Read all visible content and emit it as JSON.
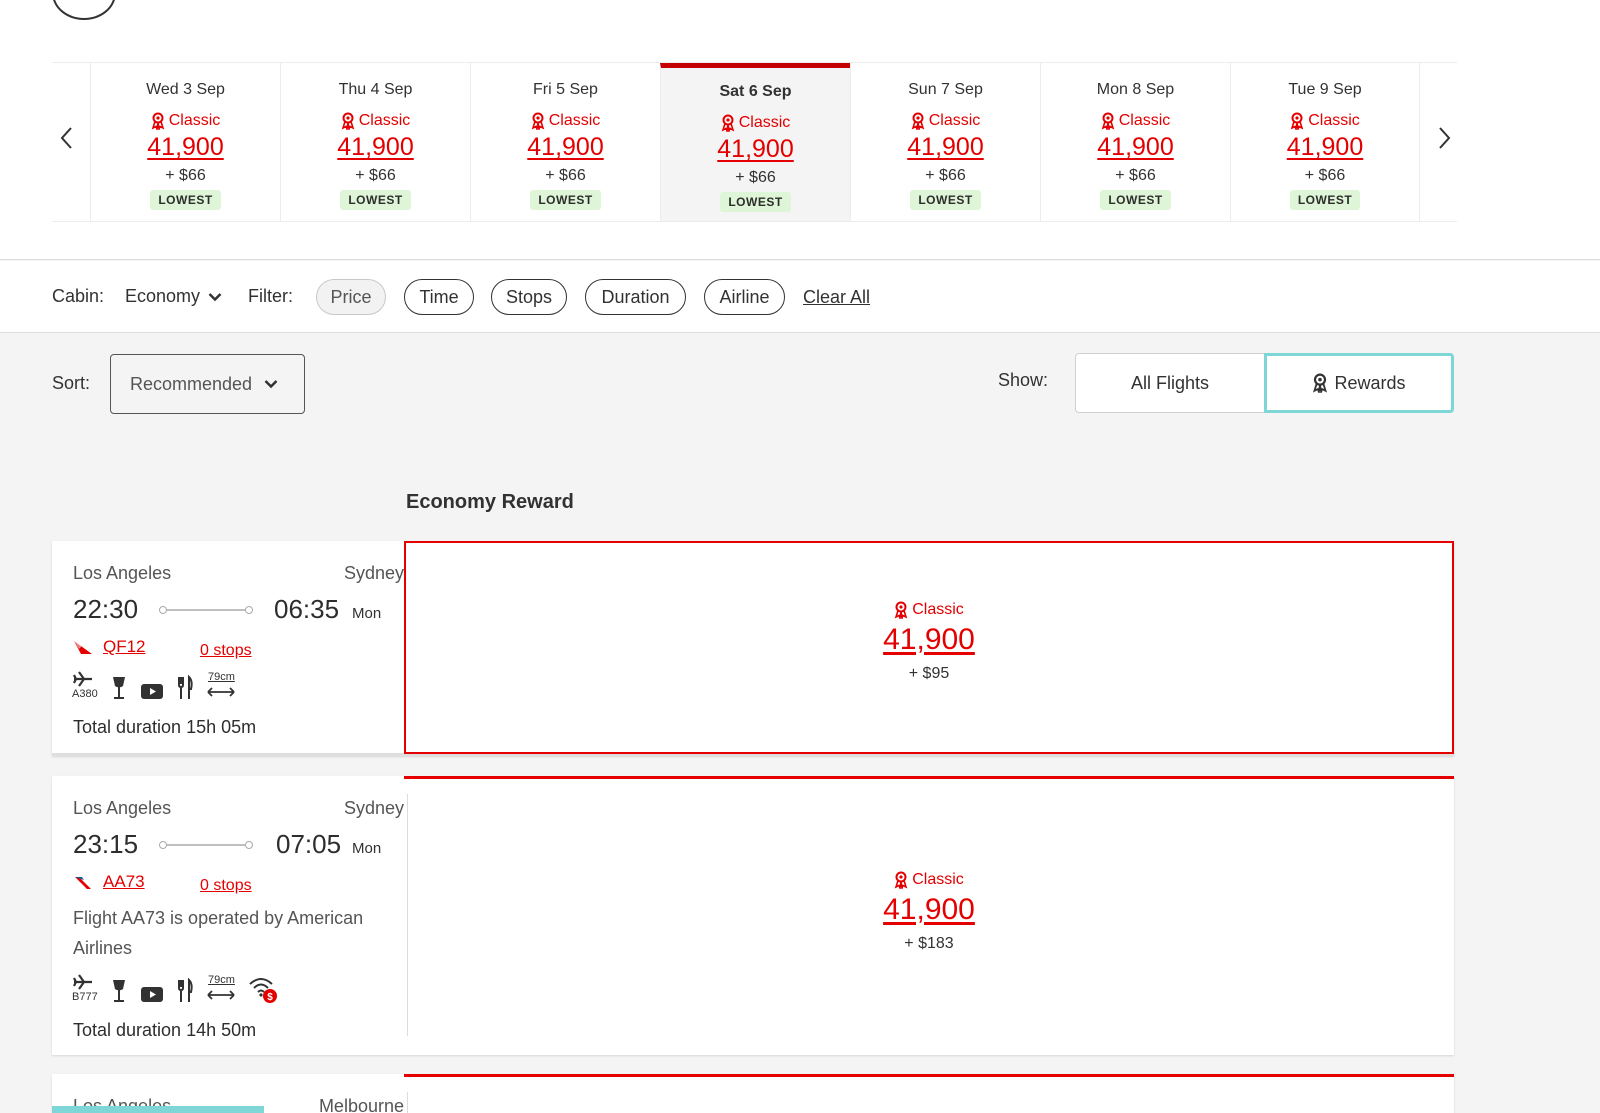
{
  "colors": {
    "brand_red": "#e40000",
    "selected_tab": "#c40000",
    "lowest_badge_bg": "#dff5d7",
    "toggle_active": "#7fd6d6"
  },
  "carousel": {
    "prev_icon": "chevron-left-icon",
    "next_icon": "chevron-right-icon",
    "days": [
      {
        "label": "Wed 3 Sep",
        "classic": "Classic",
        "points": "41,900",
        "tax": "+ $66",
        "badge": "LOWEST"
      },
      {
        "label": "Thu 4 Sep",
        "classic": "Classic",
        "points": "41,900",
        "tax": "+ $66",
        "badge": "LOWEST"
      },
      {
        "label": "Fri 5 Sep",
        "classic": "Classic",
        "points": "41,900",
        "tax": "+ $66",
        "badge": "LOWEST"
      },
      {
        "label": "Sat 6 Sep",
        "classic": "Classic",
        "points": "41,900",
        "tax": "+ $66",
        "badge": "LOWEST",
        "selected": true
      },
      {
        "label": "Sun 7 Sep",
        "classic": "Classic",
        "points": "41,900",
        "tax": "+ $66",
        "badge": "LOWEST"
      },
      {
        "label": "Mon 8 Sep",
        "classic": "Classic",
        "points": "41,900",
        "tax": "+ $66",
        "badge": "LOWEST"
      },
      {
        "label": "Tue 9 Sep",
        "classic": "Classic",
        "points": "41,900",
        "tax": "+ $66",
        "badge": "LOWEST"
      }
    ]
  },
  "filters": {
    "cabin_label": "Cabin:",
    "cabin_value": "Economy",
    "filter_label": "Filter:",
    "pills": [
      "Price",
      "Time",
      "Stops",
      "Duration",
      "Airline"
    ],
    "clear_all": "Clear All"
  },
  "sort": {
    "label": "Sort:",
    "value": "Recommended"
  },
  "show": {
    "label": "Show:",
    "all_flights": "All Flights",
    "rewards": "Rewards"
  },
  "section_title": "Economy Reward",
  "flights": [
    {
      "origin": "Los Angeles",
      "destination": "Sydney",
      "depart": "22:30",
      "arrive": "06:35",
      "arrive_day": "Mon",
      "airline_icon": "qantas-logo-icon",
      "flight_no": "QF12",
      "stops": "0 stops",
      "aircraft": "A380",
      "legroom": "79cm",
      "duration": "Total duration 15h 05m",
      "fare": {
        "classic": "Classic",
        "points": "41,900",
        "tax": "+ $95"
      }
    },
    {
      "origin": "Los Angeles",
      "destination": "Sydney",
      "depart": "23:15",
      "arrive": "07:05",
      "arrive_day": "Mon",
      "airline_icon": "american-airlines-logo-icon",
      "flight_no": "AA73",
      "stops": "0 stops",
      "operated_by": "Flight AA73 is operated by American Airlines",
      "aircraft": "B777",
      "legroom": "79cm",
      "duration": "Total duration 14h 50m",
      "fare": {
        "classic": "Classic",
        "points": "41,900",
        "tax": "+ $183"
      }
    },
    {
      "origin": "Los Angeles",
      "destination": "Melbourne"
    }
  ]
}
